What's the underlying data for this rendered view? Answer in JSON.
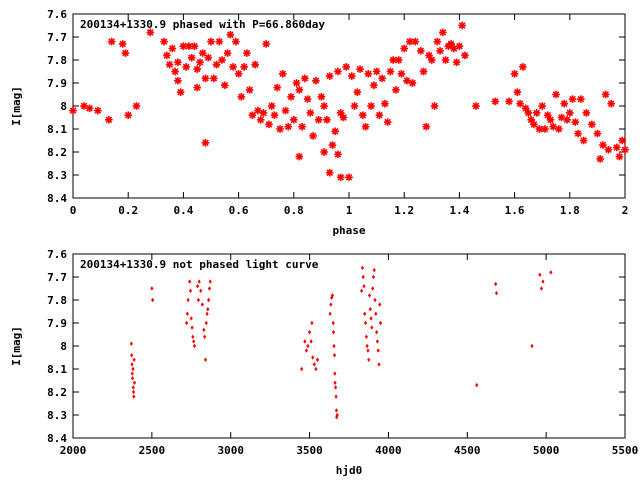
{
  "chart_data": [
    {
      "type": "scatter",
      "title": "200134+1330.9 phased with P=66.860day",
      "xlabel": "phase",
      "ylabel": "I[mag]",
      "xlim": [
        0,
        2
      ],
      "ylim": [
        7.6,
        8.4
      ],
      "y_inverted": true,
      "grid": false,
      "marker": "asterisk",
      "xticks": [
        0,
        0.2,
        0.4,
        0.6,
        0.8,
        1,
        1.2,
        1.4,
        1.6,
        1.8,
        2
      ],
      "xtick_labels": [
        "0",
        "0.2",
        "0.4",
        "0.6",
        "0.8",
        "1",
        "1.2",
        "1.4",
        "1.6",
        "1.8",
        "2"
      ],
      "yticks": [
        7.6,
        7.7,
        7.8,
        7.9,
        8,
        8.1,
        8.2,
        8.3,
        8.4
      ],
      "ytick_labels": [
        "7.6",
        "7.7",
        "7.8",
        "7.9",
        "8",
        "8.1",
        "8.2",
        "8.3",
        "8.4"
      ],
      "color": "#ff0000",
      "points": [
        [
          0.0,
          8.02
        ],
        [
          0.04,
          8.0
        ],
        [
          0.06,
          8.01
        ],
        [
          0.09,
          8.02
        ],
        [
          0.13,
          8.06
        ],
        [
          0.14,
          7.72
        ],
        [
          0.18,
          7.73
        ],
        [
          0.19,
          7.77
        ],
        [
          0.2,
          8.04
        ],
        [
          0.23,
          8.0
        ],
        [
          0.28,
          7.68
        ],
        [
          0.33,
          7.72
        ],
        [
          0.34,
          7.78
        ],
        [
          0.35,
          7.82
        ],
        [
          0.36,
          7.75
        ],
        [
          0.37,
          7.85
        ],
        [
          0.38,
          7.81
        ],
        [
          0.38,
          7.89
        ],
        [
          0.39,
          7.94
        ],
        [
          0.4,
          7.74
        ],
        [
          0.41,
          7.83
        ],
        [
          0.42,
          7.74
        ],
        [
          0.43,
          7.79
        ],
        [
          0.44,
          7.74
        ],
        [
          0.45,
          7.84
        ],
        [
          0.45,
          7.92
        ],
        [
          0.46,
          7.81
        ],
        [
          0.47,
          7.77
        ],
        [
          0.48,
          7.88
        ],
        [
          0.48,
          8.16
        ],
        [
          0.49,
          7.79
        ],
        [
          0.5,
          7.72
        ],
        [
          0.51,
          7.88
        ],
        [
          0.52,
          7.82
        ],
        [
          0.53,
          7.72
        ],
        [
          0.54,
          7.8
        ],
        [
          0.55,
          7.91
        ],
        [
          0.56,
          7.77
        ],
        [
          0.57,
          7.69
        ],
        [
          0.58,
          7.83
        ],
        [
          0.59,
          7.72
        ],
        [
          0.6,
          7.86
        ],
        [
          0.61,
          7.96
        ],
        [
          0.62,
          7.83
        ],
        [
          0.63,
          7.77
        ],
        [
          0.64,
          7.93
        ],
        [
          0.65,
          8.04
        ],
        [
          0.66,
          7.82
        ],
        [
          0.67,
          8.02
        ],
        [
          0.68,
          8.06
        ],
        [
          0.69,
          8.03
        ],
        [
          0.7,
          7.73
        ],
        [
          0.71,
          8.08
        ],
        [
          0.72,
          8.0
        ],
        [
          0.73,
          8.04
        ],
        [
          0.74,
          7.92
        ],
        [
          0.75,
          8.1
        ],
        [
          0.76,
          7.86
        ],
        [
          0.77,
          8.02
        ],
        [
          0.78,
          8.09
        ],
        [
          0.79,
          7.96
        ],
        [
          0.8,
          8.06
        ],
        [
          0.81,
          7.9
        ],
        [
          0.82,
          7.93
        ],
        [
          0.82,
          8.22
        ],
        [
          0.83,
          8.09
        ],
        [
          0.84,
          7.88
        ],
        [
          0.85,
          7.97
        ],
        [
          0.86,
          8.03
        ],
        [
          0.87,
          8.13
        ],
        [
          0.88,
          7.89
        ],
        [
          0.89,
          8.06
        ],
        [
          0.9,
          7.96
        ],
        [
          0.91,
          8.0
        ],
        [
          0.91,
          8.2
        ],
        [
          0.92,
          8.06
        ],
        [
          0.93,
          7.87
        ],
        [
          0.93,
          8.29
        ],
        [
          0.94,
          8.17
        ],
        [
          0.95,
          8.11
        ],
        [
          0.96,
          7.85
        ],
        [
          0.96,
          8.21
        ],
        [
          0.97,
          8.03
        ],
        [
          0.97,
          8.31
        ],
        [
          0.98,
          8.05
        ],
        [
          0.99,
          7.83
        ],
        [
          1.0,
          8.31
        ],
        [
          1.01,
          7.87
        ],
        [
          1.02,
          8.0
        ],
        [
          1.03,
          7.94
        ],
        [
          1.04,
          7.84
        ],
        [
          1.05,
          8.04
        ],
        [
          1.06,
          8.09
        ],
        [
          1.07,
          7.86
        ],
        [
          1.08,
          8.0
        ],
        [
          1.09,
          7.91
        ],
        [
          1.1,
          7.85
        ],
        [
          1.11,
          8.04
        ],
        [
          1.12,
          7.88
        ],
        [
          1.13,
          7.99
        ],
        [
          1.14,
          8.07
        ],
        [
          1.15,
          7.85
        ],
        [
          1.16,
          7.8
        ],
        [
          1.17,
          7.93
        ],
        [
          1.18,
          7.8
        ],
        [
          1.19,
          7.86
        ],
        [
          1.2,
          7.75
        ],
        [
          1.21,
          7.89
        ],
        [
          1.22,
          7.72
        ],
        [
          1.23,
          7.9
        ],
        [
          1.24,
          7.72
        ],
        [
          1.26,
          7.76
        ],
        [
          1.27,
          7.85
        ],
        [
          1.28,
          8.09
        ],
        [
          1.29,
          7.78
        ],
        [
          1.3,
          7.8
        ],
        [
          1.31,
          8.0
        ],
        [
          1.32,
          7.72
        ],
        [
          1.33,
          7.76
        ],
        [
          1.34,
          7.68
        ],
        [
          1.35,
          7.8
        ],
        [
          1.36,
          7.74
        ],
        [
          1.37,
          7.73
        ],
        [
          1.38,
          7.75
        ],
        [
          1.39,
          7.81
        ],
        [
          1.4,
          7.74
        ],
        [
          1.41,
          7.65
        ],
        [
          1.42,
          7.78
        ],
        [
          1.46,
          8.0
        ],
        [
          1.53,
          7.98
        ],
        [
          1.58,
          7.98
        ],
        [
          1.6,
          7.86
        ],
        [
          1.61,
          7.94
        ],
        [
          1.62,
          7.99
        ],
        [
          1.63,
          7.83
        ],
        [
          1.64,
          8.01
        ],
        [
          1.65,
          8.03
        ],
        [
          1.66,
          8.06
        ],
        [
          1.67,
          8.08
        ],
        [
          1.68,
          8.03
        ],
        [
          1.69,
          8.1
        ],
        [
          1.7,
          8.0
        ],
        [
          1.71,
          8.1
        ],
        [
          1.72,
          8.04
        ],
        [
          1.73,
          8.06
        ],
        [
          1.74,
          8.09
        ],
        [
          1.75,
          7.95
        ],
        [
          1.76,
          8.1
        ],
        [
          1.77,
          8.05
        ],
        [
          1.78,
          7.99
        ],
        [
          1.79,
          8.06
        ],
        [
          1.8,
          8.03
        ],
        [
          1.81,
          7.97
        ],
        [
          1.82,
          8.07
        ],
        [
          1.83,
          8.12
        ],
        [
          1.84,
          7.97
        ],
        [
          1.85,
          8.15
        ],
        [
          1.86,
          8.03
        ],
        [
          1.88,
          8.08
        ],
        [
          1.9,
          8.12
        ],
        [
          1.91,
          8.23
        ],
        [
          1.92,
          8.17
        ],
        [
          1.93,
          7.95
        ],
        [
          1.94,
          8.19
        ],
        [
          1.95,
          7.99
        ],
        [
          1.97,
          8.18
        ],
        [
          1.98,
          8.22
        ],
        [
          1.99,
          8.15
        ],
        [
          2.0,
          8.19
        ]
      ]
    },
    {
      "type": "scatter",
      "title": "200134+1330.9 not phased light curve",
      "xlabel": "hjd0",
      "ylabel": "I[mag]",
      "xlim": [
        2000,
        5500
      ],
      "ylim": [
        7.6,
        8.4
      ],
      "y_inverted": true,
      "grid": false,
      "marker": "diamond",
      "xticks": [
        2000,
        2500,
        3000,
        3500,
        4000,
        4500,
        5000,
        5500
      ],
      "xtick_labels": [
        "2000",
        "2500",
        "3000",
        "3500",
        "4000",
        "4500",
        "5000",
        "5500"
      ],
      "yticks": [
        7.6,
        7.7,
        7.8,
        7.9,
        8,
        8.1,
        8.2,
        8.3,
        8.4
      ],
      "ytick_labels": [
        "7.6",
        "7.7",
        "7.8",
        "7.9",
        "8",
        "8.1",
        "8.2",
        "8.3",
        "8.4"
      ],
      "color": "#ff0000",
      "points": [
        [
          2370,
          7.99
        ],
        [
          2372,
          8.04
        ],
        [
          2374,
          8.08
        ],
        [
          2376,
          8.12
        ],
        [
          2378,
          8.14
        ],
        [
          2380,
          8.1
        ],
        [
          2382,
          8.18
        ],
        [
          2384,
          8.2
        ],
        [
          2386,
          8.22
        ],
        [
          2388,
          8.06
        ],
        [
          2390,
          8.16
        ],
        [
          2500,
          7.75
        ],
        [
          2505,
          7.8
        ],
        [
          2720,
          7.9
        ],
        [
          2725,
          7.86
        ],
        [
          2730,
          7.8
        ],
        [
          2740,
          7.72
        ],
        [
          2745,
          7.76
        ],
        [
          2750,
          7.88
        ],
        [
          2755,
          7.92
        ],
        [
          2760,
          7.96
        ],
        [
          2765,
          7.98
        ],
        [
          2770,
          8.0
        ],
        [
          2790,
          7.74
        ],
        [
          2795,
          7.8
        ],
        [
          2800,
          7.72
        ],
        [
          2810,
          7.76
        ],
        [
          2820,
          7.82
        ],
        [
          2830,
          7.93
        ],
        [
          2835,
          7.96
        ],
        [
          2840,
          8.06
        ],
        [
          2845,
          7.9
        ],
        [
          2850,
          7.86
        ],
        [
          2855,
          7.84
        ],
        [
          2860,
          7.8
        ],
        [
          2865,
          7.75
        ],
        [
          2870,
          7.72
        ],
        [
          3450,
          8.1
        ],
        [
          3470,
          7.98
        ],
        [
          3480,
          8.02
        ],
        [
          3490,
          8.0
        ],
        [
          3500,
          7.94
        ],
        [
          3510,
          7.98
        ],
        [
          3515,
          7.9
        ],
        [
          3520,
          8.05
        ],
        [
          3530,
          8.08
        ],
        [
          3540,
          8.1
        ],
        [
          3550,
          8.06
        ],
        [
          3630,
          7.86
        ],
        [
          3635,
          7.82
        ],
        [
          3640,
          7.79
        ],
        [
          3645,
          7.78
        ],
        [
          3650,
          7.9
        ],
        [
          3652,
          7.94
        ],
        [
          3655,
          8.0
        ],
        [
          3658,
          8.04
        ],
        [
          3660,
          8.12
        ],
        [
          3662,
          8.16
        ],
        [
          3665,
          8.18
        ],
        [
          3668,
          8.22
        ],
        [
          3670,
          8.28
        ],
        [
          3672,
          8.31
        ],
        [
          3675,
          8.3
        ],
        [
          3830,
          7.76
        ],
        [
          3835,
          7.66
        ],
        [
          3840,
          7.7
        ],
        [
          3845,
          7.74
        ],
        [
          3850,
          7.86
        ],
        [
          3855,
          7.9
        ],
        [
          3860,
          7.96
        ],
        [
          3865,
          8.0
        ],
        [
          3870,
          8.02
        ],
        [
          3875,
          8.06
        ],
        [
          3880,
          7.78
        ],
        [
          3885,
          7.84
        ],
        [
          3890,
          7.88
        ],
        [
          3895,
          7.92
        ],
        [
          3900,
          7.75
        ],
        [
          3905,
          7.7
        ],
        [
          3910,
          7.67
        ],
        [
          3915,
          7.8
        ],
        [
          3920,
          7.86
        ],
        [
          3925,
          7.94
        ],
        [
          3930,
          7.98
        ],
        [
          3935,
          8.02
        ],
        [
          3940,
          8.08
        ],
        [
          3945,
          7.82
        ],
        [
          3950,
          7.9
        ],
        [
          4560,
          8.17
        ],
        [
          4680,
          7.73
        ],
        [
          4685,
          7.77
        ],
        [
          4910,
          8.0
        ],
        [
          4960,
          7.69
        ],
        [
          4970,
          7.75
        ],
        [
          4980,
          7.72
        ],
        [
          5030,
          7.68
        ]
      ]
    }
  ]
}
